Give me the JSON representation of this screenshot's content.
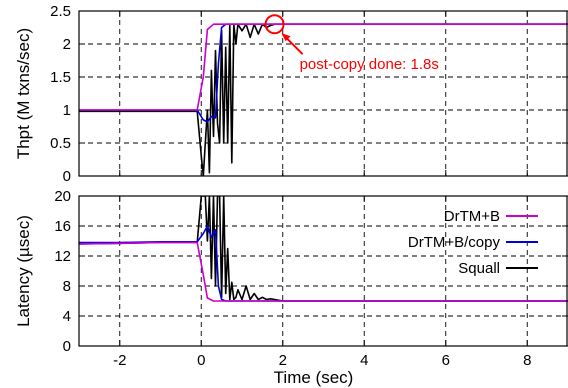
{
  "chart_data": [
    {
      "type": "line",
      "panel": "top",
      "ylabel": "Thpt (M txns/sec)",
      "xlabel": "",
      "xlim": [
        -3,
        9
      ],
      "ylim": [
        0,
        2.5
      ],
      "yticks": [
        "0",
        "0.5",
        "1",
        "1.5",
        "2",
        "2.5"
      ],
      "xticks": [
        -2,
        0,
        2,
        4,
        6,
        8
      ],
      "grid": true,
      "annotation": {
        "text": "post-copy done: 1.8s",
        "x": 1.8,
        "y": 2.3
      },
      "series": [
        {
          "name": "DrTM+B",
          "color": "#cc00cc",
          "x": [
            -3,
            -2,
            -1,
            -0.1,
            0.05,
            0.15,
            0.3,
            1,
            2,
            3,
            4,
            5,
            6,
            7,
            8,
            9
          ],
          "y": [
            1.0,
            1.0,
            1.0,
            1.0,
            1.5,
            2.22,
            2.3,
            2.3,
            2.3,
            2.3,
            2.3,
            2.3,
            2.3,
            2.3,
            2.3,
            2.3
          ]
        },
        {
          "name": "DrTM+B/copy",
          "color": "#0000dd",
          "x": [
            -3,
            -2,
            -1,
            -0.1,
            0.05,
            0.15,
            0.25,
            0.35,
            0.42,
            0.5,
            0.6,
            0.7,
            1,
            2,
            4,
            6,
            8,
            9
          ],
          "y": [
            1.0,
            1.0,
            1.0,
            1.0,
            0.85,
            0.82,
            0.9,
            0.88,
            1.7,
            2.25,
            2.3,
            2.3,
            2.3,
            2.3,
            2.3,
            2.3,
            2.3,
            2.3
          ]
        },
        {
          "name": "Squall",
          "color": "#000000",
          "x": [
            -3,
            -2,
            -1,
            -0.1,
            0.0,
            0.05,
            0.1,
            0.15,
            0.2,
            0.25,
            0.3,
            0.35,
            0.4,
            0.45,
            0.5,
            0.55,
            0.6,
            0.65,
            0.7,
            0.75,
            0.8,
            0.85,
            0.9,
            1.0,
            1.1,
            1.2,
            1.3,
            1.4,
            1.5,
            1.6,
            1.7,
            1.8,
            2.0,
            3,
            4,
            5,
            6,
            7,
            8,
            9
          ],
          "y": [
            0.98,
            0.98,
            0.98,
            0.98,
            0.3,
            0.0,
            0.5,
            1.0,
            0.05,
            1.6,
            0.6,
            1.9,
            0.8,
            0.5,
            2.2,
            0.5,
            1.95,
            0.5,
            2.3,
            0.2,
            2.3,
            2.0,
            2.3,
            2.2,
            2.3,
            2.1,
            2.3,
            2.15,
            2.3,
            2.25,
            2.28,
            2.3,
            2.3,
            2.3,
            2.3,
            2.3,
            2.3,
            2.3,
            2.3,
            2.3
          ]
        }
      ]
    },
    {
      "type": "line",
      "panel": "bottom",
      "ylabel": "Latency (µsec)",
      "xlabel": "Time (sec)",
      "xlim": [
        -3,
        9
      ],
      "ylim": [
        0,
        20
      ],
      "yticks": [
        "0",
        "4",
        "8",
        "12",
        "16",
        "20"
      ],
      "xticks": [
        "-2",
        "0",
        "2",
        "4",
        "6",
        "8"
      ],
      "grid": true,
      "legend": "top-right",
      "series": [
        {
          "name": "DrTM+B",
          "color": "#cc00cc",
          "x": [
            -3,
            -2,
            -1,
            -0.1,
            0.05,
            0.15,
            0.3,
            1,
            2,
            3,
            4,
            5,
            6,
            7,
            8,
            9
          ],
          "y": [
            13.6,
            13.7,
            13.8,
            13.8,
            9.5,
            6.4,
            6.0,
            6.0,
            6.0,
            6.0,
            6.0,
            6.0,
            6.0,
            6.0,
            6.0,
            6.0
          ]
        },
        {
          "name": "DrTM+B/copy",
          "color": "#0000dd",
          "x": [
            -3,
            -2,
            -1,
            -0.1,
            0.05,
            0.15,
            0.25,
            0.35,
            0.42,
            0.5,
            0.6,
            0.7,
            1,
            2,
            4,
            6,
            8,
            9
          ],
          "y": [
            13.8,
            13.8,
            13.9,
            13.9,
            15.0,
            16.0,
            14.5,
            15.5,
            8.0,
            6.2,
            6.0,
            6.0,
            6.0,
            6.0,
            6.0,
            6.0,
            6.0,
            6.0
          ]
        },
        {
          "name": "Squall",
          "color": "#000000",
          "x": [
            -3,
            -2,
            -1,
            -0.1,
            0.0,
            0.05,
            0.1,
            0.15,
            0.2,
            0.25,
            0.3,
            0.35,
            0.4,
            0.45,
            0.5,
            0.55,
            0.6,
            0.65,
            0.7,
            0.75,
            0.8,
            0.85,
            0.9,
            1.0,
            1.1,
            1.2,
            1.3,
            1.4,
            1.5,
            1.6,
            1.7,
            1.8,
            2.0,
            3,
            4,
            5,
            6,
            7,
            8,
            9
          ],
          "y": [
            13.6,
            13.7,
            13.8,
            13.8,
            20,
            20,
            20,
            14,
            20,
            9,
            20,
            8,
            20,
            20,
            6.5,
            20,
            7,
            13,
            6.2,
            8.5,
            6.2,
            6.5,
            7.5,
            6.2,
            8.0,
            6.2,
            7.0,
            6.2,
            6.5,
            6.2,
            6.3,
            6.2,
            6.0,
            6.0,
            6.0,
            6.0,
            6.0,
            6.0,
            6.0,
            6.0
          ]
        }
      ]
    }
  ]
}
